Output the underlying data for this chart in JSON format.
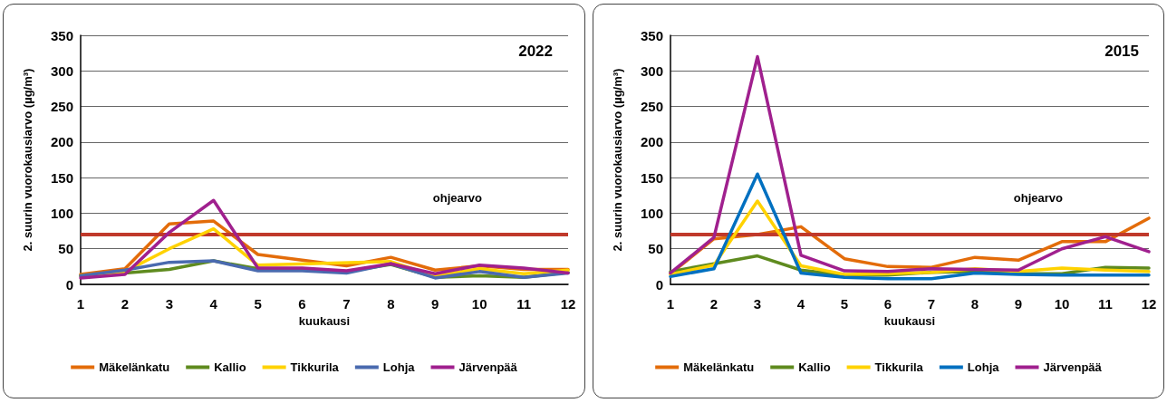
{
  "chart_data": [
    {
      "type": "line",
      "title": "2022",
      "xlabel": "kuukausi",
      "ylabel": "2. suurin vuorokausiarvo (µg/m³)",
      "x": [
        1,
        2,
        3,
        4,
        5,
        6,
        7,
        8,
        9,
        10,
        11,
        12
      ],
      "xlim": [
        1,
        12
      ],
      "xticks": [
        1,
        2,
        3,
        4,
        5,
        6,
        7,
        8,
        9,
        10,
        11,
        12
      ],
      "ylim": [
        0,
        350
      ],
      "yticks": [
        0,
        50,
        100,
        150,
        200,
        250,
        300,
        350
      ],
      "grid": "y",
      "legend": "bottom",
      "marker": "none",
      "line_style": "solid",
      "ref_lines": [
        {
          "axis": "y",
          "value": 70,
          "label": "ohjearvo",
          "color": "#c0392b"
        }
      ],
      "series": [
        {
          "name": "Mäkelänkatu",
          "color": "#e36c0a",
          "values": [
            14,
            22,
            85,
            89,
            42,
            34,
            26,
            38,
            20,
            26,
            21,
            21
          ]
        },
        {
          "name": "Kallio",
          "color": "#5f8b1f",
          "values": [
            12,
            16,
            21,
            33,
            22,
            21,
            18,
            28,
            10,
            12,
            10,
            17
          ]
        },
        {
          "name": "Tikkurila",
          "color": "#ffd200",
          "values": [
            12,
            18,
            50,
            78,
            27,
            null,
            null,
            32,
            12,
            22,
            15,
            20
          ]
        },
        {
          "name": "Lohja",
          "color": "#4a6aaf",
          "values": [
            12,
            20,
            31,
            33,
            19,
            19,
            16,
            29,
            9,
            18,
            10,
            16
          ]
        },
        {
          "name": "Järvenpää",
          "color": "#a0208e",
          "values": [
            9,
            14,
            73,
            118,
            23,
            23,
            19,
            29,
            15,
            27,
            23,
            16
          ]
        }
      ]
    },
    {
      "type": "line",
      "title": "2015",
      "xlabel": "kuukausi",
      "ylabel": "2. suurin vuorokausiarvo (µg/m³)",
      "x": [
        1,
        2,
        3,
        4,
        5,
        6,
        7,
        8,
        9,
        10,
        11,
        12
      ],
      "xlim": [
        1,
        12
      ],
      "xticks": [
        1,
        2,
        3,
        4,
        5,
        6,
        7,
        8,
        9,
        10,
        11,
        12
      ],
      "ylim": [
        0,
        350
      ],
      "yticks": [
        0,
        50,
        100,
        150,
        200,
        250,
        300,
        350
      ],
      "grid": "y",
      "legend": "bottom",
      "marker": "none",
      "line_style": "solid",
      "ref_lines": [
        {
          "axis": "y",
          "value": 70,
          "label": "ohjearvo",
          "color": "#c0392b"
        }
      ],
      "series": [
        {
          "name": "Mäkelänkatu",
          "color": "#e36c0a",
          "values": [
            15,
            64,
            70,
            81,
            36,
            25,
            24,
            38,
            34,
            60,
            60,
            93
          ]
        },
        {
          "name": "Kallio",
          "color": "#5f8b1f",
          "values": [
            18,
            29,
            40,
            20,
            13,
            13,
            17,
            18,
            15,
            15,
            24,
            23
          ]
        },
        {
          "name": "Tikkurila",
          "color": "#ffd200",
          "values": [
            14,
            27,
            117,
            26,
            14,
            15,
            17,
            22,
            18,
            23,
            20,
            18
          ]
        },
        {
          "name": "Lohja",
          "color": "#0070c0",
          "values": [
            11,
            22,
            155,
            16,
            10,
            8,
            8,
            16,
            14,
            13,
            13,
            13
          ]
        },
        {
          "name": "Järvenpää",
          "color": "#a0208e",
          "values": [
            16,
            66,
            320,
            41,
            19,
            18,
            22,
            21,
            20,
            50,
            67,
            46
          ]
        }
      ]
    }
  ]
}
